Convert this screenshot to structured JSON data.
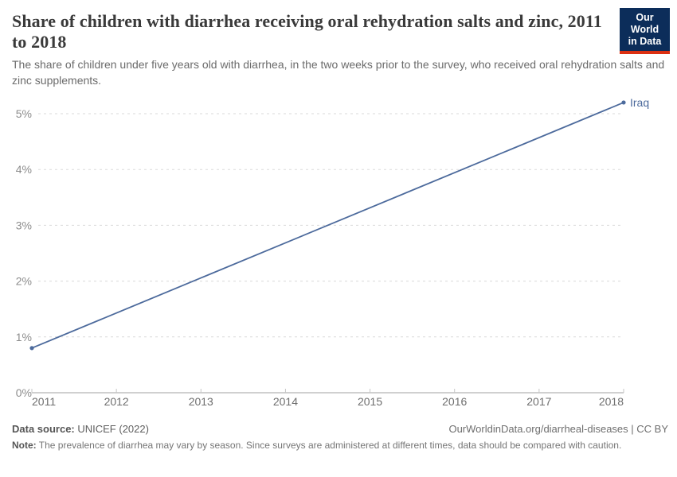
{
  "header": {
    "title": "Share of children with diarrhea receiving oral rehydration salts and zinc, 2011 to 2018",
    "subtitle": "The share of children under five years old with diarrhea, in the two weeks prior to the survey, who received oral rehydration salts and zinc supplements."
  },
  "logo": {
    "line1": "Our World",
    "line2": "in Data"
  },
  "chart_data": {
    "type": "line",
    "title": "Share of children with diarrhea receiving oral rehydration salts and zinc, 2011 to 2018",
    "x": [
      2011,
      2018
    ],
    "series": [
      {
        "name": "Iraq",
        "values": [
          0.8,
          5.2
        ],
        "color": "#4C6A9C"
      }
    ],
    "xlim": [
      2011,
      2018
    ],
    "ylim": [
      0,
      5.2
    ],
    "xticks": [
      2011,
      2012,
      2013,
      2014,
      2015,
      2016,
      2017,
      2018
    ],
    "yticks": [
      0,
      1,
      2,
      3,
      4,
      5
    ],
    "ytick_labels": [
      "0%",
      "1%",
      "2%",
      "3%",
      "4%",
      "5%"
    ],
    "grid": "horizontal-dashed",
    "legend": "end-of-line-label",
    "end_label": "Iraq"
  },
  "footer": {
    "datasource_label": "Data source:",
    "datasource_value": " UNICEF (2022)",
    "attribution": "OurWorldinData.org/diarrheal-diseases | CC BY",
    "note_label": "Note:",
    "note_text": " The prevalence of diarrhea may vary by season. Since surveys are administered at different times, data should be compared with caution."
  },
  "colors": {
    "line-blue": "#4C6A9C",
    "logo-navy": "#0C2D5A",
    "logo-red": "#DC3012"
  }
}
